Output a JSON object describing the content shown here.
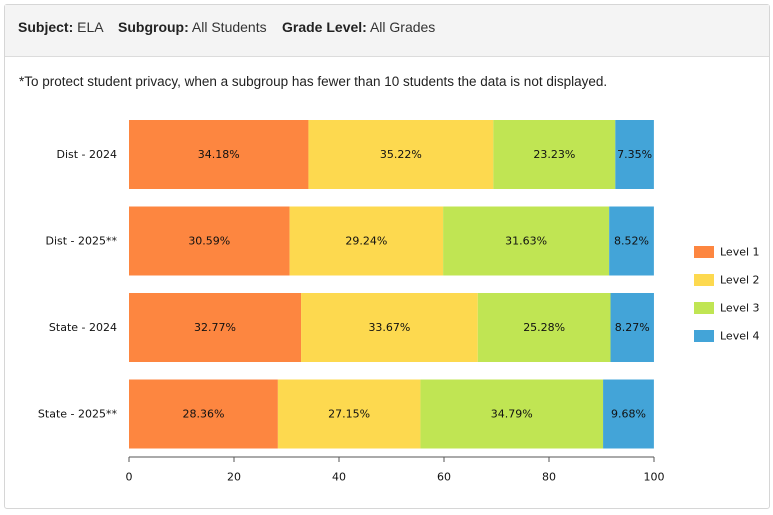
{
  "header": {
    "subject_label": "Subject:",
    "subject_value": "ELA",
    "subgroup_label": "Subgroup:",
    "subgroup_value": "All Students",
    "grade_label": "Grade Level:",
    "grade_value": "All Grades"
  },
  "note": "*To protect student privacy, when a subgroup has fewer than 10 students the data is not displayed.",
  "colors": {
    "level1": "#fd8640",
    "level2": "#fdd94f",
    "level3": "#c0e553",
    "level4": "#43a4d8"
  },
  "chart_data": {
    "type": "bar",
    "orientation": "horizontal",
    "stacked": true,
    "categories": [
      "Dist - 2024",
      "Dist - 2025**",
      "State - 2024",
      "State - 2025**"
    ],
    "series": [
      {
        "name": "Level 1",
        "values": [
          34.18,
          30.59,
          32.77,
          28.36
        ],
        "labels": [
          "34.18%",
          "30.59%",
          "32.77%",
          "28.36%"
        ]
      },
      {
        "name": "Level 2",
        "values": [
          35.22,
          29.24,
          33.67,
          27.15
        ],
        "labels": [
          "35.22%",
          "29.24%",
          "33.67%",
          "27.15%"
        ]
      },
      {
        "name": "Level 3",
        "values": [
          23.23,
          31.63,
          25.28,
          34.79
        ],
        "labels": [
          "23.23%",
          "31.63%",
          "25.28%",
          "34.79%"
        ]
      },
      {
        "name": "Level 4",
        "values": [
          7.35,
          8.52,
          8.27,
          9.68
        ],
        "labels": [
          "7.35%",
          "8.52%",
          "8.27%",
          "9.68%"
        ]
      }
    ],
    "xlim": [
      0,
      100
    ],
    "xticks": [
      "0",
      "20",
      "40",
      "60",
      "80",
      "100"
    ],
    "legend_position": "right",
    "grid": false
  }
}
